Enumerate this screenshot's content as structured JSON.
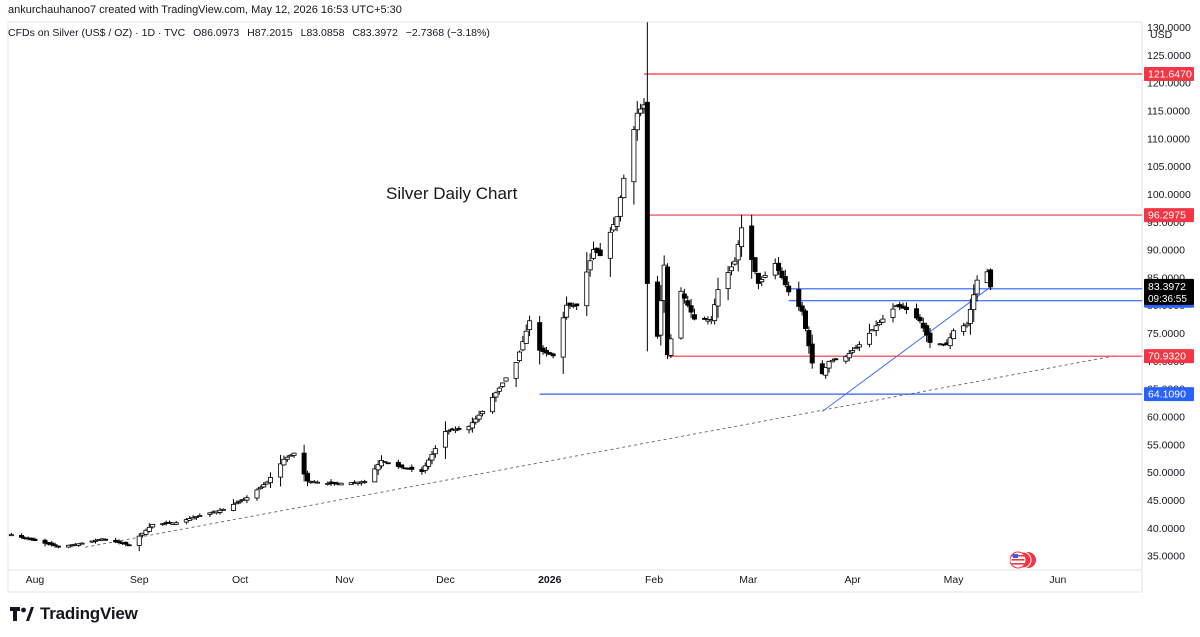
{
  "header": {
    "credit": "ankurchauhanoo7 created with TradingView.com, May 12, 2026 16:53 UTC+5:30",
    "symbol": "CFDs on Silver (US$ / OZ) · 1D · TVC",
    "open": "O86.0973",
    "high": "H87.2015",
    "low": "L83.0858",
    "close": "C83.3972",
    "change": "−2.7368 (−3.18%)",
    "currency": "USD"
  },
  "annotation": "Silver Daily Chart",
  "brand": {
    "name": "TradingView",
    "logo_icon": "tradingview-logo-icon"
  },
  "colors": {
    "up": "#ffffff",
    "down": "#000000",
    "red_level": "#f23645",
    "blue_level": "#2962ff",
    "price_tag": "#000000",
    "axis_text": "#131722"
  },
  "chart_data": {
    "type": "candlestick",
    "title": "",
    "ylim": [
      32.5,
      131
    ],
    "y_ticks": [
      35,
      40,
      45,
      50,
      55,
      60,
      65,
      70,
      75,
      80,
      85,
      90,
      95,
      100,
      105,
      110,
      115,
      120,
      125,
      130
    ],
    "y_tick_labels": [
      "35.0000",
      "40.0000",
      "45.0000",
      "50.0000",
      "55.0000",
      "60.0000",
      "65.0000",
      "70.0000",
      "75.0000",
      "80.0000",
      "85.0000",
      "90.0000",
      "95.0000",
      "100.0000",
      "105.0000",
      "110.0000",
      "115.0000",
      "120.0000",
      "125.0000",
      "130.0000"
    ],
    "x_labels": [
      {
        "label": "Aug",
        "date": "2025-08-01"
      },
      {
        "label": "Sep",
        "date": "2025-09-01"
      },
      {
        "label": "Oct",
        "date": "2025-10-01"
      },
      {
        "label": "Nov",
        "date": "2025-11-01"
      },
      {
        "label": "Dec",
        "date": "2025-12-01"
      },
      {
        "label": "2026",
        "date": "2026-01-01",
        "bold": true
      },
      {
        "label": "Feb",
        "date": "2026-02-01"
      },
      {
        "label": "Mar",
        "date": "2026-03-01"
      },
      {
        "label": "Apr",
        "date": "2026-04-01"
      },
      {
        "label": "May",
        "date": "2026-05-01"
      },
      {
        "label": "Jun",
        "date": "2026-06-01"
      }
    ],
    "x_range": [
      "2025-07-24",
      "2026-06-26"
    ],
    "last_price": {
      "value": 83.3972,
      "label": "83.3972",
      "countdown": "09:36:55"
    },
    "levels": [
      {
        "value": 121.647,
        "label": "121.6470",
        "color": "red",
        "from": "2026-01-29"
      },
      {
        "value": 96.2975,
        "label": "96.2975",
        "color": "red",
        "from": "2026-01-30"
      },
      {
        "value": 83.045,
        "label": "83.0450",
        "color": "blue",
        "from": "2026-03-13"
      },
      {
        "value": 80.906,
        "label": "80.9060",
        "color": "blue",
        "from": "2026-03-13"
      },
      {
        "value": 70.932,
        "label": "70.9320",
        "color": "red",
        "from": "2026-02-05"
      },
      {
        "value": 64.109,
        "label": "64.1090",
        "color": "blue",
        "from": "2025-12-29"
      }
    ],
    "trendlines": [
      {
        "from": [
          "2026-03-23",
          61.0
        ],
        "to": [
          "2026-05-12",
          83.3972
        ],
        "style": "solid",
        "color": "blue"
      },
      {
        "from": [
          "2025-08-16",
          36.6
        ],
        "to": [
          "2026-06-18",
          71.0
        ],
        "style": "dashed",
        "color": "black"
      }
    ],
    "anchors": [
      [
        "2025-07-24",
        39.0
      ],
      [
        "2025-08-08",
        36.7
      ],
      [
        "2025-08-14",
        37.2
      ],
      [
        "2025-08-21",
        38.1
      ],
      [
        "2025-08-29",
        37.0
      ],
      [
        "2025-09-05",
        40.7
      ],
      [
        "2025-09-12",
        41.0
      ],
      [
        "2025-09-19",
        42.3
      ],
      [
        "2025-09-26",
        43.4
      ],
      [
        "2025-10-03",
        45.5
      ],
      [
        "2025-10-09",
        48.3
      ],
      [
        "2025-10-14",
        52.4
      ],
      [
        "2025-10-17",
        53.5
      ],
      [
        "2025-10-21",
        48.5
      ],
      [
        "2025-10-28",
        48.0
      ],
      [
        "2025-11-03",
        48.2
      ],
      [
        "2025-11-07",
        48.4
      ],
      [
        "2025-11-12",
        52.2
      ],
      [
        "2025-11-17",
        51.1
      ],
      [
        "2025-11-24",
        50.2
      ],
      [
        "2025-12-01",
        57.4
      ],
      [
        "2025-12-08",
        58.3
      ],
      [
        "2025-12-12",
        61.0
      ],
      [
        "2025-12-17",
        65.2
      ],
      [
        "2025-12-22",
        69.8
      ],
      [
        "2025-12-26",
        77.3
      ],
      [
        "2025-12-29",
        72.0
      ],
      [
        "2026-01-02",
        71.0
      ],
      [
        "2026-01-06",
        80.1
      ],
      [
        "2026-01-09",
        80.0
      ],
      [
        "2026-01-14",
        90.1
      ],
      [
        "2026-01-16",
        89.0
      ],
      [
        "2026-01-21",
        96.0
      ],
      [
        "2026-01-23",
        102.9
      ],
      [
        "2026-01-27",
        114.6
      ],
      [
        "2026-01-29",
        116.1
      ],
      [
        "2026-01-30",
        84.0
      ],
      [
        "2026-02-02",
        74.5
      ],
      [
        "2026-02-04",
        87.3
      ],
      [
        "2026-02-05",
        71.2
      ],
      [
        "2026-02-09",
        82.6
      ],
      [
        "2026-02-13",
        77.6
      ],
      [
        "2026-02-18",
        77.5
      ],
      [
        "2026-02-20",
        82.9
      ],
      [
        "2026-02-25",
        88.0
      ],
      [
        "2026-02-27",
        94.0
      ],
      [
        "2026-03-02",
        88.3
      ],
      [
        "2026-03-04",
        84.0
      ],
      [
        "2026-03-09",
        87.6
      ],
      [
        "2026-03-13",
        82.5
      ],
      [
        "2026-03-17",
        79.0
      ],
      [
        "2026-03-20",
        69.7
      ],
      [
        "2026-03-23",
        67.8
      ],
      [
        "2026-03-25",
        70.0
      ],
      [
        "2026-03-30",
        70.9
      ],
      [
        "2026-04-03",
        73.0
      ],
      [
        "2026-04-08",
        76.4
      ],
      [
        "2026-04-14",
        80.0
      ],
      [
        "2026-04-17",
        79.3
      ],
      [
        "2026-04-21",
        77.3
      ],
      [
        "2026-04-24",
        73.4
      ],
      [
        "2026-04-29",
        73.0
      ],
      [
        "2026-05-01",
        75.5
      ],
      [
        "2026-05-05",
        76.7
      ],
      [
        "2026-05-08",
        84.6
      ],
      [
        "2026-05-11",
        86.1
      ],
      [
        "2026-05-12",
        83.3972
      ]
    ]
  }
}
